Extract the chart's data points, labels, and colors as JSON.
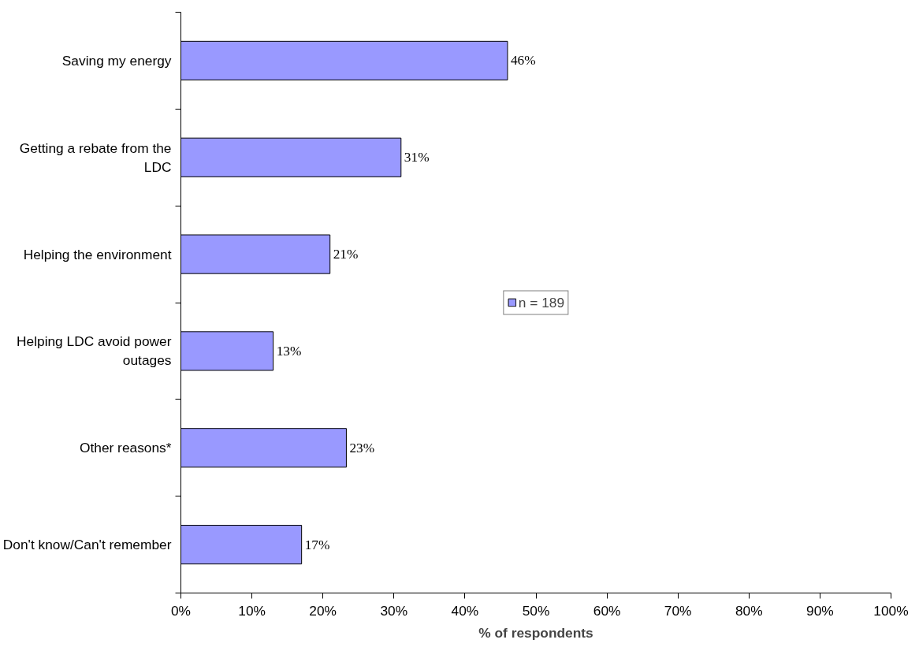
{
  "chart_data": {
    "type": "bar",
    "orientation": "horizontal",
    "xlabel": "% of respondents",
    "categories": [
      "Saving my energy",
      "Getting a rebate from the LDC",
      "Helping the environment",
      "Helping LDC avoid power outages",
      "Other reasons*",
      "Don't know/Can't remember"
    ],
    "series": [
      {
        "name": "n = 189",
        "color": "#9999ff",
        "values": [
          46,
          31,
          21,
          13,
          23.3,
          17
        ],
        "value_labels": [
          "46%",
          "31%",
          "21%",
          "13%",
          "23%",
          "17%"
        ]
      }
    ],
    "xlim": [
      0,
      100
    ],
    "xticks": [
      {
        "value": 0,
        "label": "0%"
      },
      {
        "value": 10,
        "label": "10%"
      },
      {
        "value": 20,
        "label": "20%"
      },
      {
        "value": 30,
        "label": "30%"
      },
      {
        "value": 40,
        "label": "40%"
      },
      {
        "value": 50,
        "label": "50%"
      },
      {
        "value": 60,
        "label": "60%"
      },
      {
        "value": 70,
        "label": "70%"
      },
      {
        "value": 80,
        "label": "80%"
      },
      {
        "value": 90,
        "label": "90%"
      },
      {
        "value": 100,
        "label": "100%"
      }
    ],
    "grid": false,
    "legend": "center"
  }
}
